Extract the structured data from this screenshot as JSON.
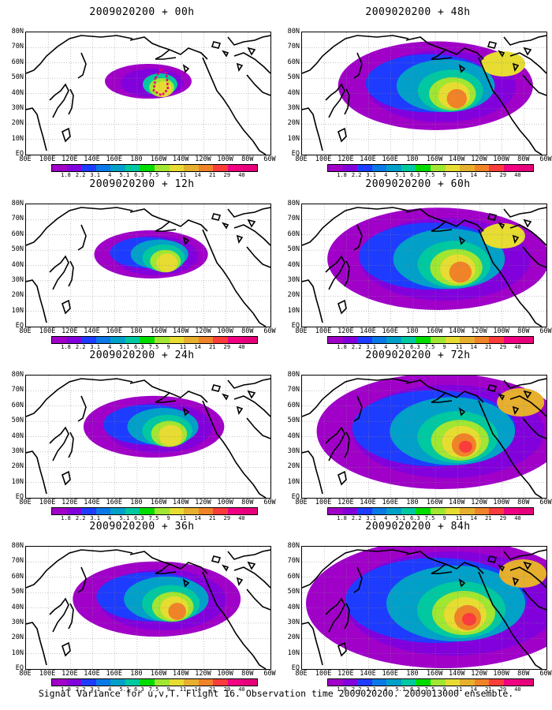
{
  "caption": "Signal Variance for u,v,T. Flight 16. Observation time 2009020200. 2009013000 ensemble.",
  "panels": [
    {
      "title": "2009020200 + 00h",
      "lead": 0
    },
    {
      "title": "2009020200 + 48h",
      "lead": 48
    },
    {
      "title": "2009020200 + 12h",
      "lead": 12
    },
    {
      "title": "2009020200 + 60h",
      "lead": 60
    },
    {
      "title": "2009020200 + 24h",
      "lead": 24
    },
    {
      "title": "2009020200 + 72h",
      "lead": 72
    },
    {
      "title": "2009020200 + 36h",
      "lead": 36
    },
    {
      "title": "2009020200 + 84h",
      "lead": 84
    }
  ],
  "lat_labels": [
    "80N",
    "70N",
    "60N",
    "50N",
    "40N",
    "30N",
    "20N",
    "10N",
    "EQ"
  ],
  "lon_labels": [
    "80E",
    "100E",
    "120E",
    "140E",
    "160E",
    "180",
    "160W",
    "140W",
    "120W",
    "100W",
    "80W",
    "60W"
  ],
  "colorbar": {
    "labels": [
      "1.8",
      "2.2",
      "3.1",
      "4",
      "5.1",
      "6.3",
      "7.5",
      "9",
      "11",
      "14",
      "21",
      "29",
      "40"
    ],
    "colors": [
      "#a000c8",
      "#8200dc",
      "#1e3cff",
      "#0a78e6",
      "#00a0c8",
      "#00c8a0",
      "#00dc00",
      "#a0e632",
      "#e6dc32",
      "#e6af2d",
      "#f08228",
      "#fa3c3c",
      "#f00082",
      "#e6007a"
    ]
  }
}
